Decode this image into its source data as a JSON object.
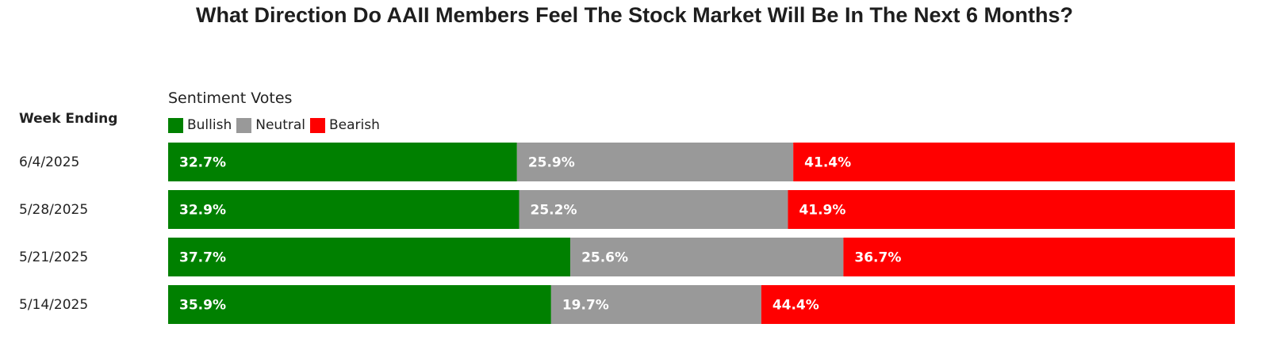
{
  "chart_data": {
    "type": "bar",
    "orientation": "horizontal-stacked-100",
    "title": "What Direction Do AAII Members Feel The Stock Market Will Be In The Next 6 Months?",
    "row_header": "Week Ending",
    "legend_title": "Sentiment Votes",
    "legend_position": "top-left",
    "categories": [
      "6/4/2025",
      "5/28/2025",
      "5/21/2025",
      "5/14/2025"
    ],
    "series": [
      {
        "name": "Bullish",
        "color": "#008000",
        "values": [
          32.7,
          32.9,
          37.7,
          35.9
        ],
        "labels": [
          "32.7%",
          "32.9%",
          "37.7%",
          "35.9%"
        ]
      },
      {
        "name": "Neutral",
        "color": "#999999",
        "values": [
          25.9,
          25.2,
          25.6,
          19.7
        ],
        "labels": [
          "25.9%",
          "25.2%",
          "25.6%",
          "19.7%"
        ]
      },
      {
        "name": "Bearish",
        "color": "#ff0000",
        "values": [
          41.4,
          41.9,
          36.7,
          44.4
        ],
        "labels": [
          "41.4%",
          "41.9%",
          "36.7%",
          "44.4%"
        ]
      }
    ]
  }
}
